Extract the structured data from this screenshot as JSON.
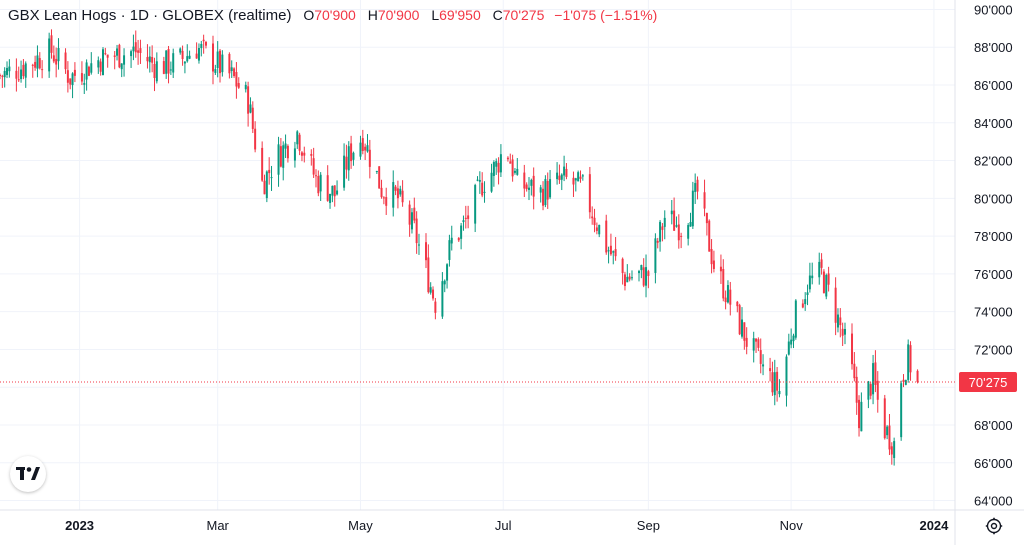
{
  "legend": {
    "symbol": "GBX Lean Hogs · 1D · GLOBEX (realtime)",
    "open_label": "O",
    "open": "70'900",
    "high_label": "H",
    "high": "70'900",
    "low_label": "L",
    "low": "69'950",
    "close_label": "C",
    "close": "70'275",
    "change": "−1'075 (−1.51%)"
  },
  "colors": {
    "up": "#089981",
    "down": "#f23645",
    "grid": "#f0f3fa",
    "axis_text": "#131722",
    "price_line": "#f23645"
  },
  "icons": {
    "logo": "tradingview-logo-icon",
    "settings": "gear-icon"
  },
  "chart_data": {
    "type": "candlestick",
    "title": "GBX Lean Hogs · 1D · GLOBEX (realtime)",
    "ylim": [
      63.5,
      90.5
    ],
    "y_ticks": [
      "64'000",
      "66'000",
      "68'000",
      "70'000",
      "72'000",
      "74'000",
      "76'000",
      "78'000",
      "80'000",
      "82'000",
      "84'000",
      "86'000",
      "88'000",
      "90'000"
    ],
    "x_ticks": [
      "2023",
      "Mar",
      "May",
      "Jul",
      "Sep",
      "Nov",
      "2024"
    ],
    "x_tick_dates": [
      "2023-01-01",
      "2023-03-01",
      "2023-05-01",
      "2023-07-01",
      "2023-09-01",
      "2023-11-01",
      "2024-01-01"
    ],
    "date_range": [
      "2022-11-28",
      "2024-01-10"
    ],
    "last_price": 70.275,
    "last_price_label": "70'275",
    "closes": [
      [
        [
          "2022-11-28",
          86.5
        ],
        [
          "2022-12-08",
          87.0
        ],
        [
          "2022-12-20",
          87.8
        ],
        [
          "2022-12-28",
          86.4
        ],
        [
          "2023-01-10",
          87.4
        ],
        [
          "2023-01-25",
          87.8
        ],
        [
          "2023-02-03",
          87.0
        ],
        [
          "2023-02-12",
          87.2
        ],
        [
          "2023-02-20",
          88.0
        ],
        [
          "2023-03-01",
          87.1
        ],
        [
          "2023-03-08",
          86.3
        ],
        [
          "2023-03-14",
          85.2
        ],
        [
          "2023-03-20",
          80.8
        ],
        [
          "2023-03-27",
          82.3
        ],
        [
          "2023-04-04",
          83.5
        ],
        [
          "2023-04-12",
          81.0
        ],
        [
          "2023-04-20",
          80.2
        ],
        [
          "2023-04-27",
          82.5
        ],
        [
          "2023-05-02",
          83.3
        ],
        [
          "2023-05-10",
          80.5
        ],
        [
          "2023-05-17",
          80.0
        ],
        [
          "2023-05-24",
          78.3
        ],
        [
          "2023-06-02",
          74.5
        ],
        [
          "2023-06-09",
          77.7
        ],
        [
          "2023-06-14",
          78.5
        ],
        [
          "2023-06-22",
          80.8
        ],
        [
          "2023-06-28",
          81.7
        ],
        [
          "2023-07-02",
          82.8
        ],
        [
          "2023-07-07",
          80.8
        ],
        [
          "2023-07-17",
          80.3
        ],
        [
          "2023-07-27",
          81.0
        ],
        [
          "2023-08-04",
          80.5
        ],
        [
          "2023-08-14",
          77.5
        ],
        [
          "2023-08-22",
          75.8
        ],
        [
          "2023-09-01",
          76.0
        ],
        [
          "2023-09-08",
          79.0
        ],
        [
          "2023-09-15",
          78.5
        ],
        [
          "2023-09-22",
          80.3
        ],
        [
          "2023-09-29",
          76.5
        ],
        [
          "2023-10-06",
          74.5
        ],
        [
          "2023-10-13",
          72.5
        ],
        [
          "2023-10-20",
          71.0
        ],
        [
          "2023-10-27",
          69.8
        ],
        [
          "2023-11-02",
          73.5
        ],
        [
          "2023-11-08",
          75.5
        ],
        [
          "2023-11-14",
          76.0
        ],
        [
          "2023-11-20",
          74.0
        ],
        [
          "2023-11-26",
          71.5
        ],
        [
          "2023-11-30",
          68.5
        ],
        [
          "2023-12-06",
          70.5
        ],
        [
          "2023-12-10",
          68.0
        ],
        [
          "2023-12-15",
          67.0
        ],
        [
          "2023-12-18",
          70.5
        ],
        [
          "2023-12-21",
          71.5
        ],
        [
          "2023-12-25",
          70.275
        ]
      ]
    ]
  }
}
